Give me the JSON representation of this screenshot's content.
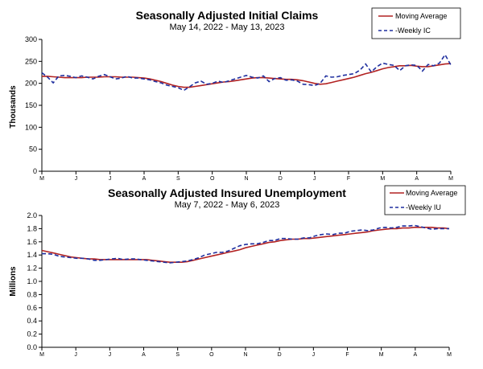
{
  "colors": {
    "moving_average": "#b22222",
    "weekly": "#1f2f9f",
    "axis": "#000000"
  },
  "chart_data": [
    {
      "type": "line",
      "title": "Seasonally Adjusted Initial Claims",
      "subtitle": "May 14, 2022 - May 13, 2023",
      "xlabel": "",
      "ylabel": "Thousands",
      "ylim": [
        0,
        300
      ],
      "yticks": [
        "0",
        "50",
        "100",
        "150",
        "200",
        "250",
        "300"
      ],
      "x_tick_labels": [
        "M",
        "J",
        "J",
        "A",
        "S",
        "O",
        "N",
        "D",
        "J",
        "F",
        "M",
        "A",
        "M"
      ],
      "grid": false,
      "legend": "top-right",
      "series": [
        {
          "name": "Moving Average",
          "style": "solid",
          "values": [
            216,
            216,
            215,
            214,
            213,
            213,
            213,
            213,
            214,
            214,
            214,
            215,
            215,
            215,
            214,
            214,
            214,
            213,
            212,
            210,
            207,
            204,
            200,
            196,
            193,
            191,
            191,
            193,
            195,
            197,
            199,
            201,
            203,
            204,
            206,
            208,
            210,
            212,
            213,
            213,
            212,
            211,
            210,
            209,
            209,
            208,
            206,
            203,
            200,
            198,
            199,
            202,
            205,
            208,
            211,
            214,
            218,
            222,
            225,
            229,
            233,
            236,
            238,
            240,
            240,
            241,
            239,
            238,
            238,
            240,
            242,
            244,
            245
          ]
        },
        {
          "name": "-Weekly IC",
          "style": "dashed",
          "values": [
            224,
            214,
            201,
            217,
            218,
            216,
            213,
            217,
            214,
            210,
            216,
            220,
            215,
            210,
            212,
            216,
            212,
            212,
            210,
            208,
            204,
            201,
            196,
            193,
            190,
            184,
            192,
            201,
            205,
            198,
            200,
            205,
            202,
            206,
            210,
            214,
            218,
            214,
            212,
            217,
            204,
            211,
            213,
            207,
            208,
            205,
            198,
            197,
            195,
            200,
            217,
            214,
            215,
            218,
            220,
            222,
            230,
            244,
            226,
            238,
            246,
            243,
            241,
            229,
            240,
            242,
            241,
            228,
            243,
            240,
            246,
            265,
            242
          ]
        }
      ]
    },
    {
      "type": "line",
      "title": "Seasonally Adjusted Insured Unemployment",
      "subtitle": "May 7, 2022 - May 6, 2023",
      "xlabel": "",
      "ylabel": "Millions",
      "ylim": [
        0.0,
        2.0
      ],
      "yticks": [
        "0.0",
        "0.2",
        "0.4",
        "0.6",
        "0.8",
        "1.0",
        "1.2",
        "1.4",
        "1.6",
        "1.8",
        "2.0"
      ],
      "x_tick_labels": [
        "M",
        "J",
        "J",
        "A",
        "S",
        "O",
        "N",
        "D",
        "J",
        "F",
        "M",
        "A",
        "M"
      ],
      "grid": false,
      "legend": "top-right",
      "series": [
        {
          "name": "Moving Average",
          "style": "solid",
          "values": [
            1.47,
            1.45,
            1.43,
            1.41,
            1.39,
            1.37,
            1.36,
            1.35,
            1.34,
            1.34,
            1.33,
            1.33,
            1.33,
            1.33,
            1.33,
            1.33,
            1.33,
            1.33,
            1.33,
            1.32,
            1.31,
            1.3,
            1.29,
            1.29,
            1.29,
            1.3,
            1.32,
            1.34,
            1.36,
            1.38,
            1.4,
            1.42,
            1.44,
            1.46,
            1.48,
            1.51,
            1.53,
            1.55,
            1.57,
            1.59,
            1.6,
            1.62,
            1.63,
            1.64,
            1.64,
            1.65,
            1.65,
            1.66,
            1.67,
            1.68,
            1.69,
            1.7,
            1.71,
            1.72,
            1.73,
            1.74,
            1.75,
            1.77,
            1.78,
            1.79,
            1.8,
            1.8,
            1.81,
            1.81,
            1.82,
            1.82,
            1.82,
            1.82,
            1.81,
            1.81,
            1.8
          ]
        },
        {
          "name": "-Weekly IU",
          "style": "dashed",
          "values": [
            1.42,
            1.42,
            1.41,
            1.38,
            1.37,
            1.36,
            1.35,
            1.35,
            1.34,
            1.32,
            1.32,
            1.33,
            1.34,
            1.35,
            1.33,
            1.34,
            1.34,
            1.33,
            1.32,
            1.31,
            1.3,
            1.29,
            1.28,
            1.29,
            1.3,
            1.31,
            1.33,
            1.36,
            1.4,
            1.42,
            1.44,
            1.44,
            1.46,
            1.5,
            1.54,
            1.56,
            1.57,
            1.57,
            1.59,
            1.62,
            1.62,
            1.65,
            1.65,
            1.64,
            1.64,
            1.66,
            1.66,
            1.69,
            1.71,
            1.72,
            1.71,
            1.73,
            1.73,
            1.76,
            1.77,
            1.78,
            1.77,
            1.78,
            1.81,
            1.82,
            1.81,
            1.82,
            1.84,
            1.84,
            1.85,
            1.83,
            1.81,
            1.79,
            1.8,
            1.8,
            1.8
          ]
        }
      ]
    }
  ]
}
